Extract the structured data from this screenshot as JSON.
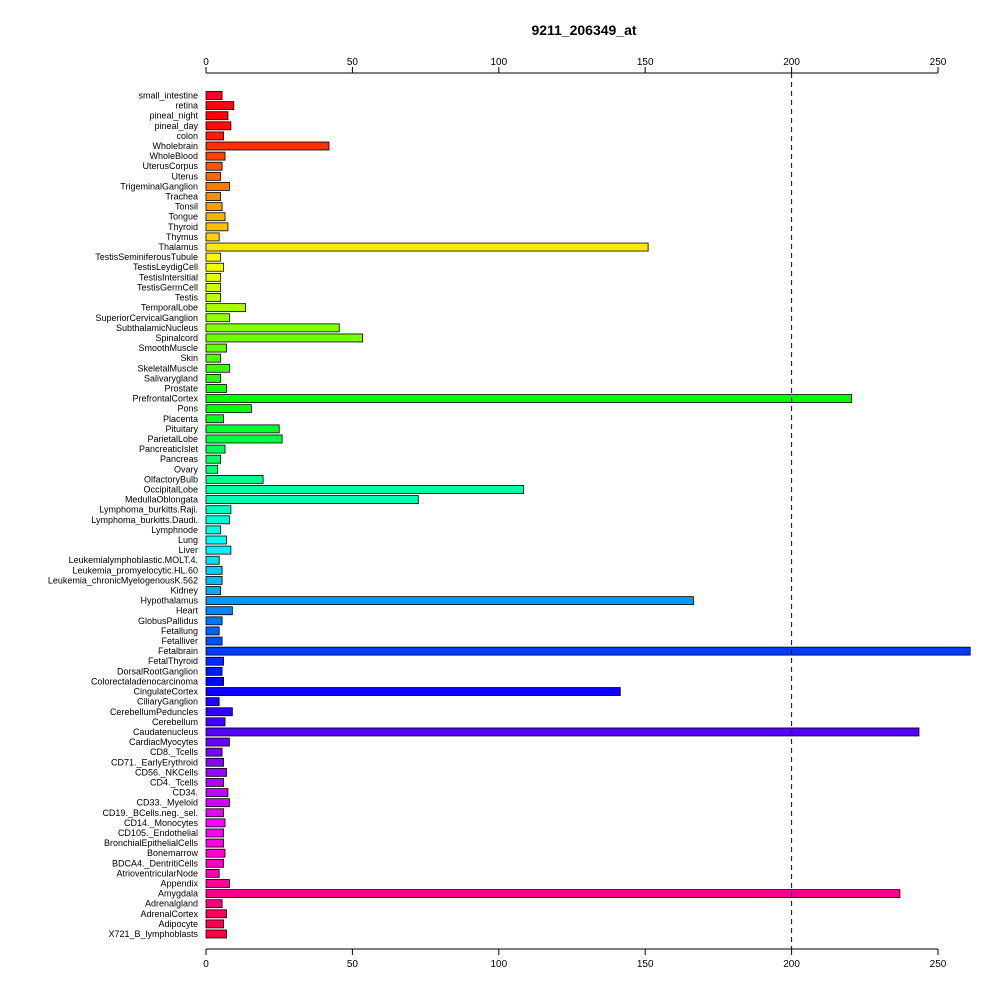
{
  "chart_data": {
    "type": "bar",
    "orientation": "horizontal",
    "title": "9211_206349_at",
    "xlabel": "",
    "ylabel": "",
    "xlim": [
      0,
      260
    ],
    "x_ticks": [
      0,
      50,
      100,
      150,
      200,
      250
    ],
    "x_tick_labels": [
      "0",
      "50",
      "100",
      "150",
      "200",
      "250"
    ],
    "reference_line": 200,
    "grid": false,
    "legend": "none",
    "categories": [
      "small_intestine",
      "retina",
      "pineal_night",
      "pineal_day",
      "colon",
      "Wholebrain",
      "WholeBlood",
      "UterusCorpus",
      "Uterus",
      "TrigeminalGanglion",
      "Trachea",
      "Tonsil",
      "Tongue",
      "Thyroid",
      "Thymus",
      "Thalamus",
      "TestisSeminiferousTubule",
      "TestisLeydigCell",
      "TestisIntersitial",
      "TestisGermCell",
      "Testis",
      "TemporalLobe",
      "SuperiorCervicalGanglion",
      "SubthalamicNucleus",
      "Spinalcord",
      "SmoothMuscle",
      "Skin",
      "SkeletalMuscle",
      "Salivarygland",
      "Prostate",
      "PrefrontalCortex",
      "Pons",
      "Placenta",
      "Pituitary",
      "ParietalLobe",
      "PancreaticIslet",
      "Pancreas",
      "Ovary",
      "OlfactoryBulb",
      "OccipitalLobe",
      "MedullaOblongata",
      "Lymphoma_burkitts.Raji.",
      "Lymphoma_burkitts.Daudi.",
      "Lymphnode",
      "Lung",
      "Liver",
      "Leukemialymphoblastic.MOLT.4.",
      "Leukemia_promyelocytic.HL.60",
      "Leukemia_chronicMyelogenousK.562",
      "Kidney",
      "Hypothalamus",
      "Heart",
      "GlobusPallidus",
      "Fetallung",
      "Fetalliver",
      "Fetalbrain",
      "FetalThyroid",
      "DorsalRootGanglion",
      "Colorectaladenocarcinoma",
      "CingulateCortex",
      "CiliaryGanglion",
      "CerebellumPeduncles",
      "Cerebellum",
      "Caudatenucleus",
      "CardiacMyocytes",
      "CD8._Tcells",
      "CD71._EarlyErythroid",
      "CD56._NKCells",
      "CD4._Tcells",
      "CD34.",
      "CD33._Myeloid",
      "CD19._BCells.neg._sel.",
      "CD14._Monocytes",
      "CD105._Endothelial",
      "BronchialEpithelialCells",
      "Bonemarrow",
      "BDCA4._DentritiCells",
      "AtrioventricularNode",
      "Appendix",
      "Amygdala",
      "Adrenalgland",
      "AdrenalCortex",
      "Adipocyte",
      "X721_B_lymphoblasts"
    ],
    "values": [
      5.5,
      9.5,
      7.5,
      8.5,
      6,
      42,
      6.5,
      5.5,
      5,
      8,
      5,
      5.5,
      6.5,
      7.5,
      4.5,
      151,
      5,
      6,
      5,
      5,
      5,
      13.5,
      8,
      45.5,
      53.5,
      7,
      5,
      8,
      5,
      7,
      220.5,
      15.5,
      6,
      25,
      26,
      6.5,
      5,
      4,
      19.5,
      108.5,
      72.5,
      8.5,
      8,
      5,
      7,
      8.5,
      4.5,
      5.5,
      5.5,
      5,
      166.5,
      9,
      5.5,
      4.5,
      5.5,
      261,
      6,
      5.5,
      6,
      141.5,
      4.5,
      9,
      6.5,
      243.5,
      8,
      5.5,
      6,
      7,
      6,
      7.5,
      8,
      6,
      6.5,
      6,
      6,
      6.5,
      6,
      4.5,
      8,
      237,
      5.5,
      7,
      6,
      7
    ]
  }
}
